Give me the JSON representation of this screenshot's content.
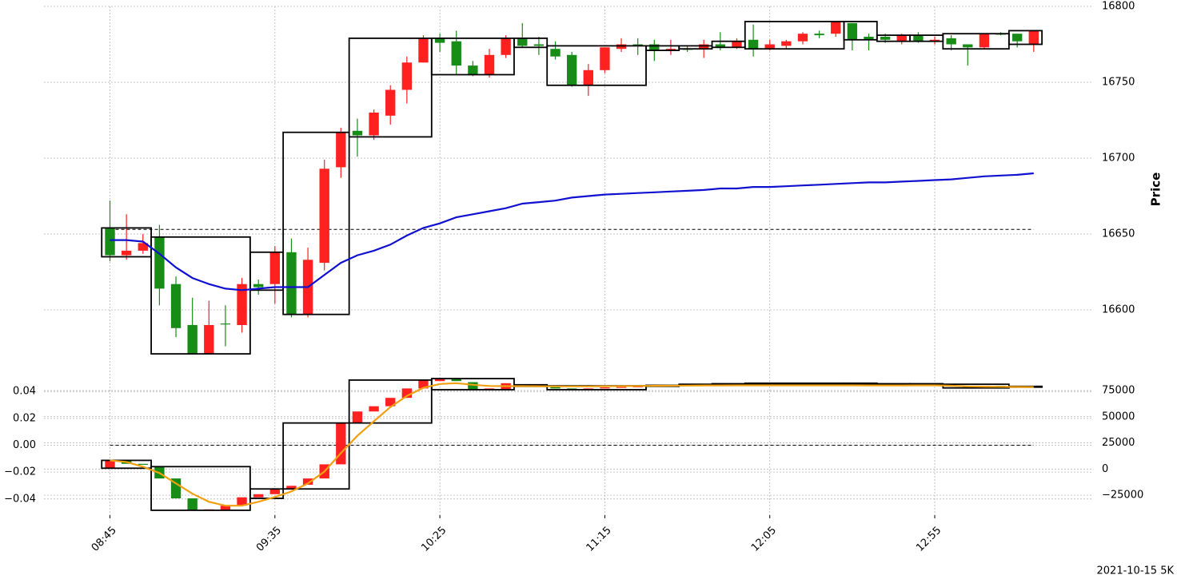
{
  "chart_data": [
    {
      "type": "candlestick",
      "ylabel": "Price",
      "ylim": [
        16565,
        16800
      ],
      "yticks": [
        16600,
        16650,
        16700,
        16750,
        16800
      ],
      "xlim": [
        -4,
        59.5
      ],
      "grid": true,
      "candles": {
        "up_color": "#ff2020",
        "down_color": "#178c17",
        "open": [
          16654,
          16636,
          16639,
          16648,
          16617,
          16590,
          16571,
          16591,
          16590,
          16617,
          16617,
          16638,
          16597,
          16631,
          16694,
          16718,
          16715,
          16728,
          16745,
          16763,
          16779,
          16777,
          16761,
          16755,
          16768,
          16779,
          16775,
          16772,
          16768,
          16748,
          16758,
          16772,
          16775,
          16775,
          16771,
          16772,
          16772,
          16775,
          16773,
          16778,
          16772,
          16774,
          16777,
          16782,
          16782,
          16789,
          16780,
          16780,
          16777,
          16781,
          16777,
          16779,
          16775,
          16773,
          16782,
          16782,
          16775
        ],
        "high": [
          16672,
          16663,
          16650,
          16656,
          16622,
          16608,
          16606,
          16603,
          16621,
          16620,
          16642,
          16647,
          16641,
          16699,
          16720,
          16726,
          16732,
          16748,
          16767,
          16781,
          16782,
          16784,
          16764,
          16772,
          16781,
          16789,
          16780,
          16777,
          16770,
          16762,
          16773,
          16779,
          16779,
          16778,
          16778,
          16774,
          16778,
          16783,
          16779,
          16788,
          16778,
          16778,
          16783,
          16784,
          16790,
          16789,
          16782,
          16782,
          16782,
          16783,
          16780,
          16781,
          16775,
          16782,
          16783,
          16782,
          16784
        ],
        "low": [
          16632,
          16633,
          16637,
          16603,
          16582,
          16571,
          16571,
          16576,
          16585,
          16610,
          16604,
          16595,
          16595,
          16626,
          16687,
          16701,
          16712,
          16722,
          16736,
          16763,
          16770,
          16755,
          16754,
          16753,
          16766,
          16773,
          16768,
          16765,
          16747,
          16741,
          16756,
          16770,
          16768,
          16764,
          16768,
          16770,
          16766,
          16771,
          16772,
          16767,
          16771,
          16772,
          16775,
          16779,
          16780,
          16771,
          16771,
          16776,
          16775,
          16776,
          16775,
          16771,
          16761,
          16772,
          16781,
          16773,
          16770
        ],
        "close": [
          16636,
          16639,
          16644,
          16614,
          16588,
          16571,
          16590,
          16591,
          16617,
          16615,
          16638,
          16597,
          16633,
          16693,
          16717,
          16715,
          16730,
          16745,
          16763,
          16779,
          16776,
          16761,
          16755,
          16768,
          16779,
          16774,
          16774,
          16767,
          16748,
          16758,
          16773,
          16775,
          16775,
          16771,
          16772,
          16772,
          16775,
          16773,
          16777,
          16772,
          16775,
          16777,
          16782,
          16781,
          16790,
          16778,
          16778,
          16778,
          16781,
          16777,
          16778,
          16775,
          16773,
          16782,
          16782,
          16777,
          16784
        ]
      },
      "line": {
        "color": "#1010d0",
        "values": [
          16646,
          16646,
          16645,
          16637,
          16628,
          16621,
          16617,
          16614,
          16613,
          16614,
          16615,
          16615,
          16615,
          16623,
          16631,
          16636,
          16639,
          16643,
          16649,
          16654,
          16657,
          16661,
          16663,
          16665,
          16667,
          16670,
          16671,
          16672,
          16674,
          16675,
          16676,
          16676.5,
          16677,
          16677.5,
          16678,
          16678.5,
          16679,
          16680,
          16680,
          16681,
          16681,
          16681.5,
          16682,
          16682.5,
          16683,
          16683.5,
          16684,
          16684,
          16684.5,
          16685,
          16685.5,
          16686,
          16687,
          16688,
          16688.5,
          16689,
          16690
        ]
      },
      "hline": {
        "value": 16653,
        "color": "#000000"
      },
      "boxes": {
        "start": [
          0,
          3,
          9,
          11,
          15,
          20,
          25,
          27,
          33,
          35,
          37,
          39,
          45,
          47,
          49,
          51,
          55
        ],
        "end": [
          2,
          8,
          10,
          14,
          19,
          24,
          26,
          32,
          34,
          36,
          38,
          44,
          46,
          48,
          50,
          54,
          56
        ],
        "high": [
          16654,
          16648,
          16638,
          16717,
          16779,
          16779,
          16779,
          16774,
          16774,
          16774,
          16777,
          16790,
          16790,
          16781,
          16781,
          16782,
          16784
        ],
        "low": [
          16635,
          16571,
          16613,
          16597,
          16714,
          16755,
          16773,
          16748,
          16771,
          16772,
          16773,
          16772,
          16778,
          16777,
          16777,
          16772,
          16775
        ]
      }
    },
    {
      "type": "candlestick",
      "categories": [
        "08:45",
        null,
        null,
        null,
        null,
        null,
        null,
        null,
        null,
        null,
        "09:35",
        null,
        null,
        null,
        null,
        null,
        null,
        null,
        null,
        null,
        "10:25",
        null,
        null,
        null,
        null,
        null,
        null,
        null,
        null,
        null,
        "11:15",
        null,
        null,
        null,
        null,
        null,
        null,
        null,
        null,
        null,
        "12:05",
        null,
        null,
        null,
        null,
        null,
        null,
        null,
        null,
        null,
        "12:55",
        null,
        null,
        null,
        null,
        null,
        null
      ],
      "xlim": [
        -4,
        59.5
      ],
      "grid": true,
      "ylim": [
        -0.052,
        0.052
      ],
      "yticks": [
        0.04,
        0.02,
        {
          "value": 0,
          "label": "0.00"
        },
        {
          "value": -0.02,
          "label": "−0.02"
        },
        {
          "value": -0.04,
          "label": "−0.04"
        }
      ],
      "y2lim": [
        -44000,
        89500
      ],
      "y2ticks": [
        75000,
        50000,
        25000,
        0,
        {
          "value": -25000,
          "label": "−25000"
        }
      ],
      "candles": {
        "axis": "y2",
        "up_color": "#ff2020",
        "down_color": "#178c17",
        "open": [
          1000,
          8000,
          5000,
          2000,
          -9000,
          -28000,
          -39000,
          -39000,
          -35000,
          -27000,
          -24000,
          -19000,
          -15000,
          -9000,
          4500,
          44000,
          55000,
          60000,
          68000,
          77000,
          84000,
          86000,
          83000,
          76000,
          76000,
          80000,
          79000,
          79000,
          77000,
          76000,
          77000,
          78000,
          78500,
          79000,
          79500,
          80000,
          80500,
          81000,
          81000,
          81500,
          81000,
          81500,
          82000,
          82000,
          81500,
          82000,
          81500,
          81000,
          81500,
          81500,
          81000,
          81000,
          79000,
          77500,
          79500,
          79000,
          78500
        ],
        "close": [
          8000,
          5000,
          4500,
          -9000,
          -28000,
          -39000,
          -38500,
          -35000,
          -27000,
          -24000,
          -19000,
          -16000,
          -9000,
          4500,
          44000,
          55000,
          60000,
          68000,
          77000,
          85000,
          86000,
          84000,
          76000,
          77000,
          82000,
          79000,
          80000,
          77000,
          76000,
          77000,
          78000,
          78500,
          79000,
          79500,
          80000,
          80500,
          81000,
          81000,
          81500,
          81000,
          81500,
          82000,
          82000,
          81500,
          82000,
          81500,
          81000,
          81500,
          81500,
          81000,
          81000,
          79000,
          77500,
          79500,
          79000,
          78500,
          79000
        ]
      },
      "line": {
        "color": "#f0a010",
        "values": [
          -0.0113,
          -0.0124,
          -0.016,
          -0.0207,
          -0.0284,
          -0.0361,
          -0.0421,
          -0.045,
          -0.045,
          -0.0421,
          -0.0385,
          -0.0344,
          -0.0284,
          -0.0196,
          -0.0059,
          0.0071,
          0.0178,
          0.0284,
          0.0367,
          0.0427,
          0.0456,
          0.0462,
          0.045,
          0.0441,
          0.044,
          0.044,
          0.0439,
          0.0438,
          0.0438,
          0.0438,
          0.0439,
          0.044,
          0.0441,
          0.0442,
          0.0443,
          0.0444,
          0.0445,
          0.0445,
          0.0446,
          0.0446,
          0.0446,
          0.0446,
          0.0446,
          0.0446,
          0.0446,
          0.0446,
          0.0445,
          0.0445,
          0.0445,
          0.0446,
          0.0446,
          0.0443,
          0.0438,
          0.0436,
          0.0435,
          0.0434,
          0.0433
        ]
      },
      "hline": {
        "value": 0,
        "color": "#000000"
      },
      "boxes": {
        "axis": "y2",
        "start": [
          0,
          3,
          9,
          11,
          15,
          20,
          25,
          27,
          33,
          35,
          37,
          39,
          45,
          47,
          49,
          51,
          55
        ],
        "end": [
          2,
          8,
          10,
          14,
          19,
          24,
          26,
          32,
          34,
          36,
          38,
          44,
          46,
          48,
          50,
          54,
          56
        ],
        "high": [
          8300,
          2300,
          -19000,
          44000,
          85000,
          86400,
          80500,
          79500,
          80000,
          81000,
          81500,
          82000,
          82000,
          81500,
          81500,
          81000,
          79000
        ],
        "low": [
          800,
          -39400,
          -28000,
          -19000,
          44000,
          75800,
          79000,
          75800,
          79000,
          80000,
          81000,
          81000,
          81000,
          81000,
          81000,
          77500,
          78500
        ]
      },
      "footer": "2021-10-15 5K"
    }
  ]
}
